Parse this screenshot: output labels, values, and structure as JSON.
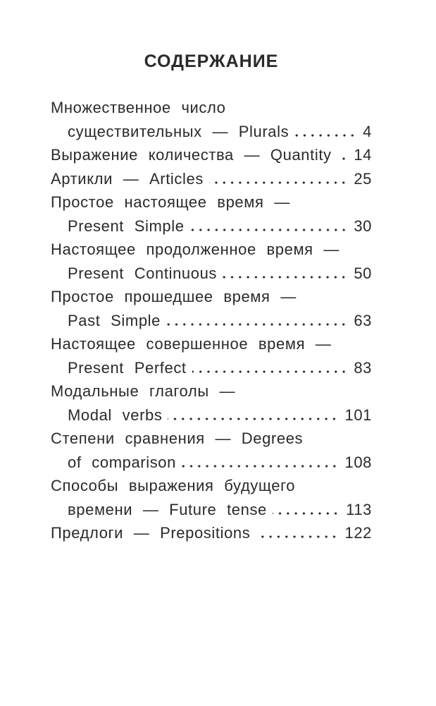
{
  "page": {
    "title": "СОДЕРЖАНИЕ"
  },
  "colors": {
    "text": "#2a2a2a",
    "background": "#ffffff"
  },
  "toc": {
    "rows": [
      {
        "text": "Множественное число",
        "page": ""
      },
      {
        "text": "существительных — Plurals",
        "page": "4"
      },
      {
        "text": "Выражение количества — Quantity",
        "page": "14"
      },
      {
        "text": "Артикли — Articles",
        "page": "25"
      },
      {
        "text": "Простое настоящее время —",
        "page": ""
      },
      {
        "text": "Present Simple",
        "page": "30"
      },
      {
        "text": "Настоящее продолженное время —",
        "page": ""
      },
      {
        "text": "Present Continuous",
        "page": "50"
      },
      {
        "text": "Простое прошедшее время —",
        "page": ""
      },
      {
        "text": "Past Simple",
        "page": "63"
      },
      {
        "text": "Настоящее совершенное время —",
        "page": ""
      },
      {
        "text": "Present Perfect",
        "page": "83"
      },
      {
        "text": "Модальные глаголы —",
        "page": ""
      },
      {
        "text": "Modal verbs",
        "page": "101"
      },
      {
        "text": "Степени сравнения — Degrees",
        "page": ""
      },
      {
        "text": "of comparison",
        "page": "108"
      },
      {
        "text": "Способы выражения будущего",
        "page": ""
      },
      {
        "text": "времени — Future tense",
        "page": "113"
      },
      {
        "text": "Предлоги — Prepositions",
        "page": "122"
      }
    ]
  }
}
